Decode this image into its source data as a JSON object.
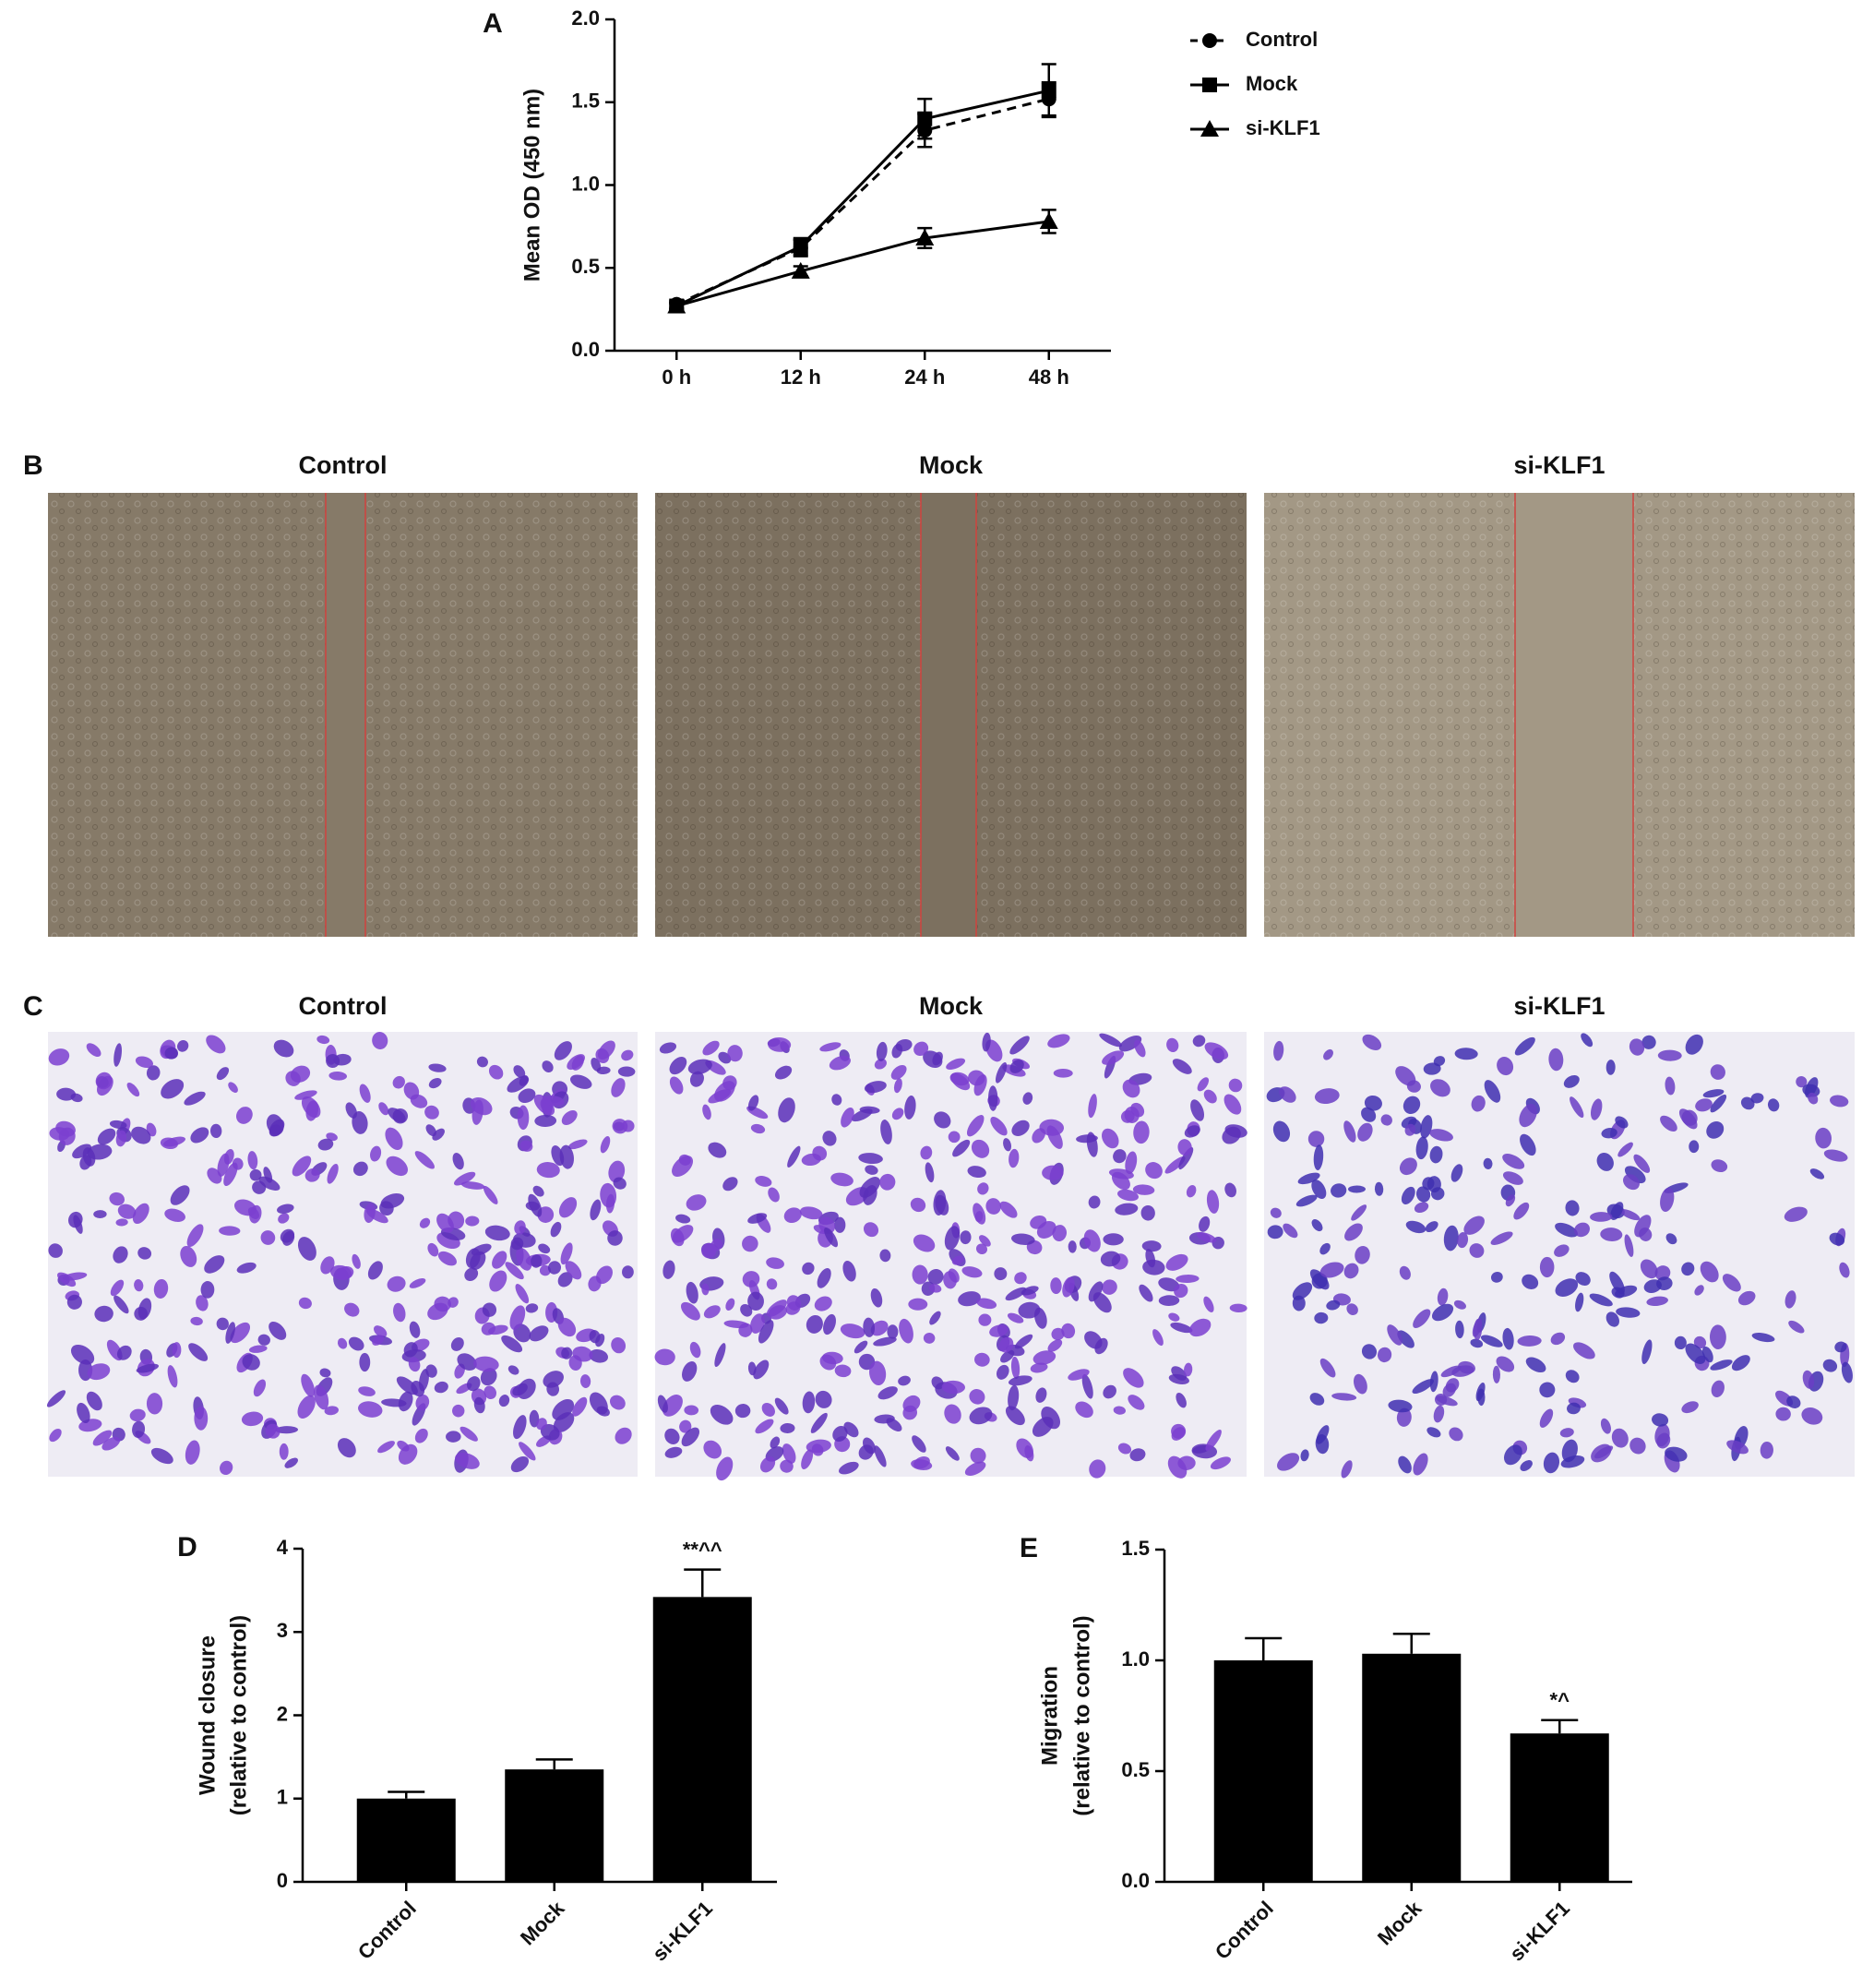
{
  "chart_data": [
    {
      "type": "line",
      "panel_label": "A",
      "ylabel": [
        "Mean OD (450 nm)"
      ],
      "categories": [
        "0 h",
        "12 h",
        "24 h",
        "48 h"
      ],
      "ylim": [
        0,
        2
      ],
      "yticks": [
        {
          "value": 0,
          "label": "0.0"
        },
        {
          "value": 0.5,
          "label": "0.5"
        },
        {
          "value": 1,
          "label": "1.0"
        },
        {
          "value": 1.5,
          "label": "1.5"
        },
        {
          "value": 2,
          "label": "2.0"
        }
      ],
      "series": [
        {
          "name": "Control",
          "color": "#000000",
          "marker": "circle",
          "dash": true,
          "values": [
            0.28,
            0.62,
            1.33,
            1.52
          ],
          "errors": [
            0.02,
            0.05,
            0.1,
            0.1
          ]
        },
        {
          "name": "Mock",
          "color": "#000000",
          "marker": "square",
          "dash": false,
          "values": [
            0.27,
            0.63,
            1.4,
            1.57
          ],
          "errors": [
            0.02,
            0.05,
            0.12,
            0.16
          ]
        },
        {
          "name": "si-KLF1",
          "color": "#000000",
          "marker": "triangle",
          "dash": false,
          "values": [
            0.27,
            0.48,
            0.68,
            0.78
          ],
          "errors": [
            0.02,
            0.03,
            0.06,
            0.07
          ]
        }
      ]
    },
    {
      "type": "bar",
      "panel_label": "D",
      "ylabel": [
        "Wound closure",
        "(relative to control)"
      ],
      "categories": [
        "Control",
        "Mock",
        "si-KLF1"
      ],
      "values": [
        1.0,
        1.35,
        3.42
      ],
      "errors": [
        0.08,
        0.12,
        0.33
      ],
      "significance": [
        null,
        null,
        "**^^"
      ],
      "color": "#000000",
      "ylim": [
        0,
        4
      ],
      "yticks": [
        0,
        1,
        2,
        3,
        4
      ]
    },
    {
      "type": "bar",
      "panel_label": "E",
      "ylabel": [
        "Migration",
        "(relative to control)"
      ],
      "categories": [
        "Control",
        "Mock",
        "si-KLF1"
      ],
      "values": [
        1.0,
        1.03,
        0.67
      ],
      "errors": [
        0.1,
        0.09,
        0.06
      ],
      "significance": [
        null,
        null,
        "*^"
      ],
      "color": "#000000",
      "ylim": [
        0,
        1.5
      ],
      "yticks": [
        {
          "value": 0,
          "label": "0.0"
        },
        {
          "value": 0.5,
          "label": "0.5"
        },
        {
          "value": 1,
          "label": "1.0"
        },
        {
          "value": 1.5,
          "label": "1.5"
        }
      ]
    }
  ],
  "image_panels": [
    {
      "label": "B",
      "titles": [
        "Control",
        "Mock",
        "si-KLF1"
      ]
    },
    {
      "label": "C",
      "titles": [
        "Control",
        "Mock",
        "si-KLF1"
      ]
    }
  ]
}
